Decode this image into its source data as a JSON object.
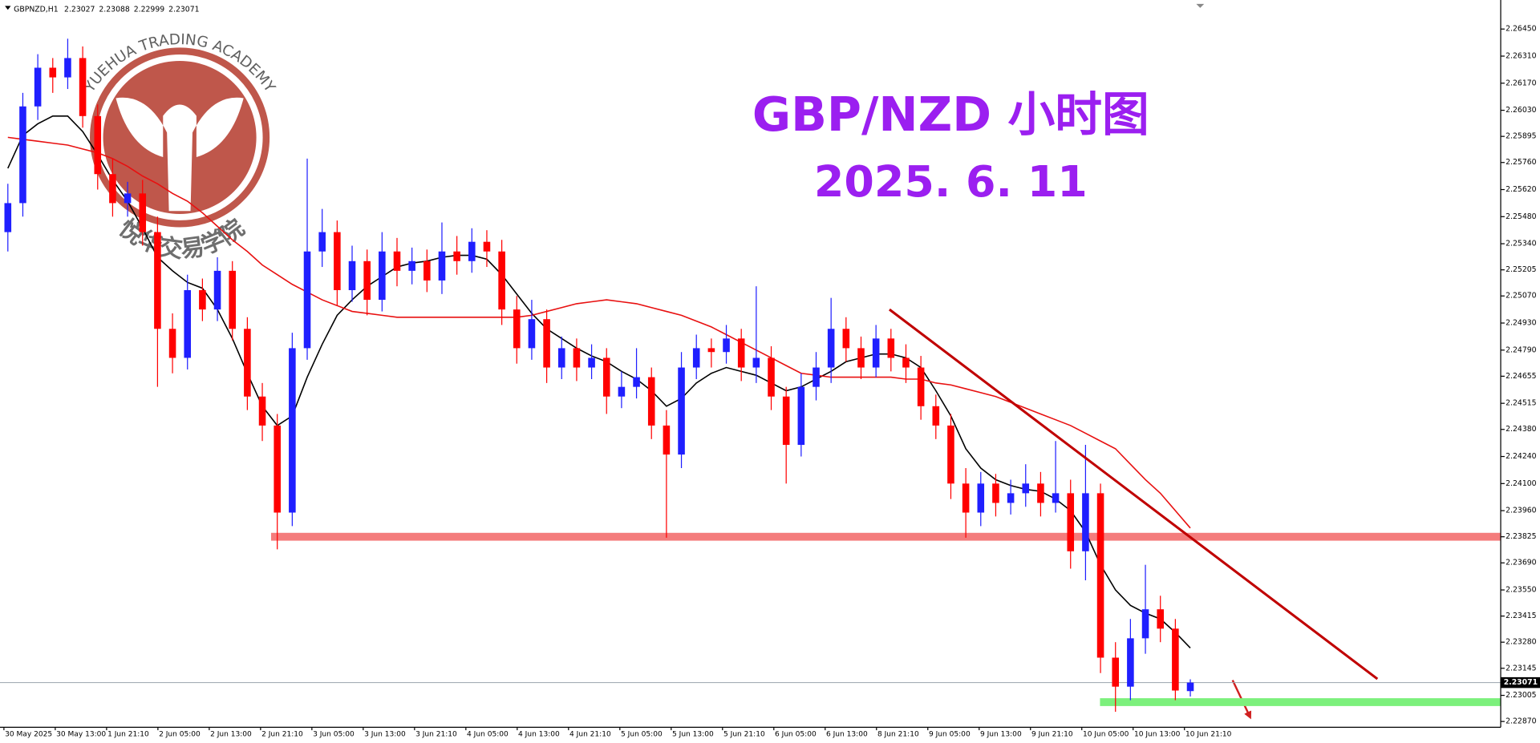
{
  "chart_data": {
    "type": "candlestick",
    "symbol": "GBPNZD,H1",
    "title": "GBP/NZD 小时图",
    "subtitle": "2025. 6. 11",
    "watermark": {
      "en": "YUEHUA TRADING ACADEMY",
      "cn": "悦华交易学院"
    },
    "up_color": "#1f1fff",
    "down_color": "#ff0000",
    "x_labels": [
      "30 May 2025",
      "30 May 13:00",
      "1 Jun 21:10",
      "2 Jun 05:00",
      "2 Jun 13:00",
      "2 Jun 21:10",
      "3 Jun 05:00",
      "3 Jun 13:00",
      "3 Jun 21:10",
      "4 Jun 05:00",
      "4 Jun 13:00",
      "4 Jun 21:10",
      "5 Jun 05:00",
      "5 Jun 13:00",
      "5 Jun 21:10",
      "6 Jun 05:00",
      "6 Jun 13:00",
      "8 Jun 21:10",
      "9 Jun 05:00",
      "9 Jun 13:00",
      "9 Jun 21:10",
      "10 Jun 05:00",
      "10 Jun 13:00",
      "10 Jun 21:10"
    ],
    "open": [
      2.254,
      2.2555,
      2.2605,
      2.2625,
      2.262,
      2.263,
      2.26,
      2.257,
      2.2555,
      2.256,
      2.254,
      2.249,
      2.2475,
      2.251,
      2.25,
      2.252,
      2.249,
      2.2455,
      2.244,
      2.2395,
      2.248,
      2.253,
      2.254,
      2.251,
      2.2525,
      2.2505,
      2.253,
      2.252,
      2.2525,
      2.2515,
      2.253,
      2.2525,
      2.2535,
      2.253,
      2.25,
      2.248,
      2.2495,
      2.247,
      2.248,
      2.247,
      2.2475,
      2.2455,
      2.246,
      2.2465,
      2.244,
      2.2425,
      2.247,
      2.248,
      2.2478,
      2.2485,
      2.247,
      2.2475,
      2.2455,
      2.243,
      2.246,
      2.247,
      2.249,
      2.248,
      2.247,
      2.2485,
      2.2475,
      2.247,
      2.245,
      2.244,
      2.241,
      2.2395,
      2.241,
      2.24,
      2.2405,
      2.241,
      2.24,
      2.2405,
      2.2375,
      2.2405,
      2.232,
      2.2305,
      2.233,
      2.2345,
      2.2335,
      2.23027
    ],
    "high": [
      2.2565,
      2.2612,
      2.2632,
      2.263,
      2.264,
      2.2636,
      2.2606,
      2.2578,
      2.2566,
      2.2567,
      2.2548,
      2.2498,
      2.2518,
      2.2516,
      2.2527,
      2.2525,
      2.2496,
      2.2462,
      2.2446,
      2.2488,
      2.2578,
      2.2552,
      2.2546,
      2.2533,
      2.2531,
      2.254,
      2.2537,
      2.2532,
      2.2531,
      2.2545,
      2.2538,
      2.2542,
      2.2541,
      2.2536,
      2.2507,
      2.2505,
      2.25,
      2.2486,
      2.2485,
      2.2482,
      2.248,
      2.2468,
      2.248,
      2.247,
      2.2448,
      2.2478,
      2.2487,
      2.2485,
      2.2492,
      2.249,
      2.2512,
      2.2481,
      2.246,
      2.2467,
      2.2478,
      2.2506,
      2.2496,
      2.2486,
      2.2492,
      2.249,
      2.2482,
      2.2476,
      2.2456,
      2.2446,
      2.2418,
      2.2416,
      2.2415,
      2.2412,
      2.242,
      2.2416,
      2.2432,
      2.2412,
      2.243,
      2.241,
      2.2328,
      2.234,
      2.2368,
      2.2352,
      2.234,
      2.23088
    ],
    "low": [
      2.253,
      2.2548,
      2.2598,
      2.2612,
      2.2614,
      2.2594,
      2.2562,
      2.2548,
      2.2548,
      2.2533,
      2.246,
      2.2467,
      2.2469,
      2.2494,
      2.2494,
      2.2484,
      2.2448,
      2.2432,
      2.2376,
      2.2388,
      2.2474,
      2.2522,
      2.2502,
      2.2504,
      2.2497,
      2.2499,
      2.2512,
      2.2513,
      2.2509,
      2.2508,
      2.2518,
      2.2519,
      2.2522,
      2.2492,
      2.2472,
      2.2474,
      2.2462,
      2.2464,
      2.2463,
      2.2464,
      2.2446,
      2.2449,
      2.2454,
      2.2433,
      2.2382,
      2.2418,
      2.2464,
      2.247,
      2.2472,
      2.2463,
      2.2462,
      2.2448,
      2.241,
      2.2424,
      2.2453,
      2.2462,
      2.2473,
      2.2464,
      2.2465,
      2.2468,
      2.2462,
      2.2443,
      2.2433,
      2.2402,
      2.2382,
      2.2388,
      2.2393,
      2.2394,
      2.2398,
      2.2393,
      2.2395,
      2.2366,
      2.236,
      2.2312,
      2.2292,
      2.2298,
      2.2322,
      2.2328,
      2.2298,
      2.22999
    ],
    "close": [
      2.2555,
      2.2605,
      2.2625,
      2.262,
      2.263,
      2.26,
      2.257,
      2.2555,
      2.256,
      2.254,
      2.249,
      2.2475,
      2.251,
      2.25,
      2.252,
      2.249,
      2.2455,
      2.244,
      2.2395,
      2.248,
      2.253,
      2.254,
      2.251,
      2.2525,
      2.2505,
      2.253,
      2.252,
      2.2525,
      2.2515,
      2.253,
      2.2525,
      2.2535,
      2.253,
      2.25,
      2.248,
      2.2495,
      2.247,
      2.248,
      2.247,
      2.2475,
      2.2455,
      2.246,
      2.2465,
      2.244,
      2.2425,
      2.247,
      2.248,
      2.2478,
      2.2485,
      2.247,
      2.2475,
      2.2455,
      2.243,
      2.246,
      2.247,
      2.249,
      2.248,
      2.247,
      2.2485,
      2.2475,
      2.247,
      2.245,
      2.244,
      2.241,
      2.2395,
      2.241,
      2.24,
      2.2405,
      2.241,
      2.24,
      2.2405,
      2.2375,
      2.2405,
      2.232,
      2.2305,
      2.233,
      2.2345,
      2.2335,
      2.2303,
      2.23071
    ],
    "ma_lines": [
      {
        "color": "#000000",
        "values": [
          2.2573,
          2.259,
          2.2596,
          2.26,
          2.26,
          2.2592,
          2.258,
          2.2567,
          2.2556,
          2.2542,
          2.2527,
          2.252,
          2.2514,
          2.2511,
          2.25,
          2.2485,
          2.2467,
          2.245,
          2.244,
          2.2445,
          2.2465,
          2.2482,
          2.2497,
          2.2505,
          2.2512,
          2.2517,
          2.2522,
          2.2524,
          2.2525,
          2.2527,
          2.2528,
          2.2528,
          2.2526,
          2.2518,
          2.2508,
          2.2498,
          2.249,
          2.2485,
          2.248,
          2.2476,
          2.2473,
          2.2468,
          2.2464,
          2.2458,
          2.245,
          2.2454,
          2.2462,
          2.2467,
          2.247,
          2.2468,
          2.2466,
          2.2462,
          2.2458,
          2.246,
          2.2464,
          2.2468,
          2.2473,
          2.2475,
          2.2477,
          2.2477,
          2.2475,
          2.247,
          2.2458,
          2.2445,
          2.2428,
          2.2418,
          2.2412,
          2.2409,
          2.2407,
          2.2406,
          2.2402,
          2.2396,
          2.2385,
          2.2368,
          2.2355,
          2.2347,
          2.2343,
          2.234,
          2.2333,
          2.2325
        ]
      },
      {
        "color": "#e81010",
        "values": [
          2.2589,
          2.2588,
          2.2587,
          2.2586,
          2.2585,
          2.2583,
          2.2581,
          2.2578,
          2.2574,
          2.2569,
          2.2565,
          2.256,
          2.2556,
          2.255,
          2.2543,
          2.2536,
          2.253,
          2.2523,
          2.2518,
          2.2513,
          2.2509,
          2.2505,
          2.2502,
          2.2499,
          2.2498,
          2.2497,
          2.2496,
          2.2496,
          2.2496,
          2.2496,
          2.2496,
          2.2496,
          2.2496,
          2.2496,
          2.2496,
          2.2497,
          2.2499,
          2.2501,
          2.2503,
          2.2504,
          2.2505,
          2.2504,
          2.2503,
          2.2501,
          2.2499,
          2.2497,
          2.2494,
          2.2491,
          2.2487,
          2.2483,
          2.2479,
          2.2475,
          2.2471,
          2.2467,
          2.2466,
          2.2465,
          2.2465,
          2.2465,
          2.2465,
          2.2465,
          2.2464,
          2.2464,
          2.2462,
          2.2461,
          2.2459,
          2.2457,
          2.2455,
          2.2452,
          2.2449,
          2.2446,
          2.2443,
          2.244,
          2.2436,
          2.2432,
          2.2428,
          2.242,
          2.2412,
          2.2405,
          2.2396,
          2.2387
        ]
      }
    ],
    "levels": [
      {
        "value": 2.23825,
        "color": "#f47c7c"
      },
      {
        "value": 2.2297,
        "color": "#7cf07c"
      }
    ],
    "last_price": 2.23071,
    "trendline": {
      "color": "#c00000",
      "x": [
        58.9,
        91.5
      ],
      "values": [
        2.25,
        2.2309
      ]
    },
    "ylim": [
      2.2284,
      2.266
    ],
    "yticks": [
      {
        "value": 2.2645,
        "label": "2.26450"
      },
      {
        "value": 2.2631,
        "label": "2.26310"
      },
      {
        "value": 2.2617,
        "label": "2.26170"
      },
      {
        "value": 2.2603,
        "label": "2.26030"
      },
      2.25895,
      {
        "value": 2.2576,
        "label": "2.25760"
      },
      {
        "value": 2.2562,
        "label": "2.25620"
      },
      {
        "value": 2.2548,
        "label": "2.25480"
      },
      {
        "value": 2.2534,
        "label": "2.25340"
      },
      2.25205,
      {
        "value": 2.2507,
        "label": "2.25070"
      },
      {
        "value": 2.2493,
        "label": "2.24930"
      },
      {
        "value": 2.2479,
        "label": "2.24790"
      },
      2.24655,
      2.24515,
      {
        "value": 2.2438,
        "label": "2.24380"
      },
      {
        "value": 2.2424,
        "label": "2.24240"
      },
      {
        "value": 2.241,
        "label": "2.24100"
      },
      {
        "value": 2.2396,
        "label": "2.23960"
      },
      2.23825,
      {
        "value": 2.2369,
        "label": "2.23690"
      },
      {
        "value": 2.2355,
        "label": "2.23550"
      },
      2.23415,
      {
        "value": 2.2328,
        "label": "2.23280"
      },
      2.23145,
      2.23005,
      {
        "value": 2.2287,
        "label": "2.22870"
      }
    ]
  }
}
